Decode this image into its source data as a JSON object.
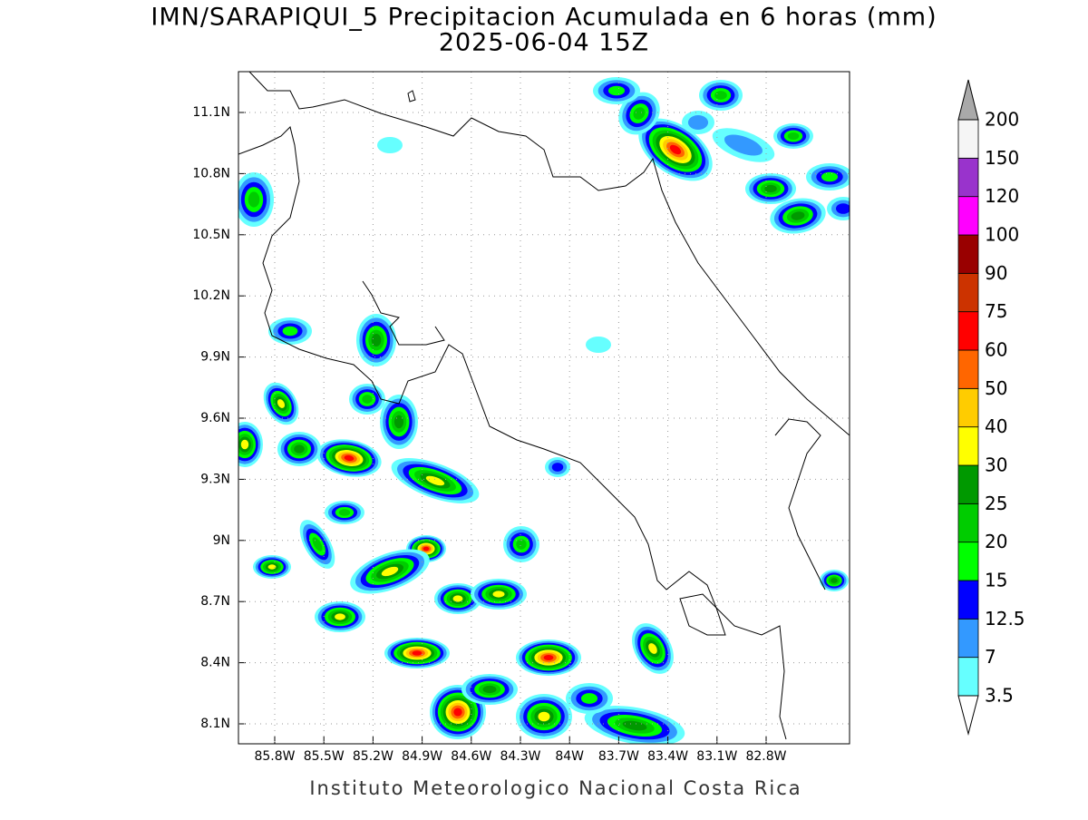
{
  "title": "IMN/SARAPIQUI_5 Precipitacion Acumulada en 6 horas (mm)",
  "subtitle": "2025-06-04 15Z",
  "footer": "Instituto Meteorologico Nacional Costa Rica",
  "map": {
    "lat_labels": [
      "11.1N",
      "10.8N",
      "10.5N",
      "10.2N",
      "9.9N",
      "9.6N",
      "9.3N",
      "9N",
      "8.7N",
      "8.4N",
      "8.1N"
    ],
    "lon_labels": [
      "85.8W",
      "85.5W",
      "85.2W",
      "84.9W",
      "84.6W",
      "84.3W",
      "84W",
      "83.7W",
      "83.4W",
      "83.1W",
      "82.8W"
    ],
    "grid": true
  },
  "colorbar": {
    "labels": [
      "3.5",
      "7",
      "12.5",
      "15",
      "20",
      "25",
      "30",
      "40",
      "50",
      "60",
      "75",
      "90",
      "100",
      "120",
      "150",
      "200"
    ],
    "colors": [
      "#66ffff",
      "#3399ff",
      "#0000ff",
      "#00ff00",
      "#00cc00",
      "#009900",
      "#ffff00",
      "#ffcc00",
      "#ff6600",
      "#ff0000",
      "#cc3300",
      "#990000",
      "#ff00ff",
      "#9933cc",
      "#f5f5f5"
    ],
    "over_color": "#a9a9a9",
    "under_color": "#ffffff"
  }
}
